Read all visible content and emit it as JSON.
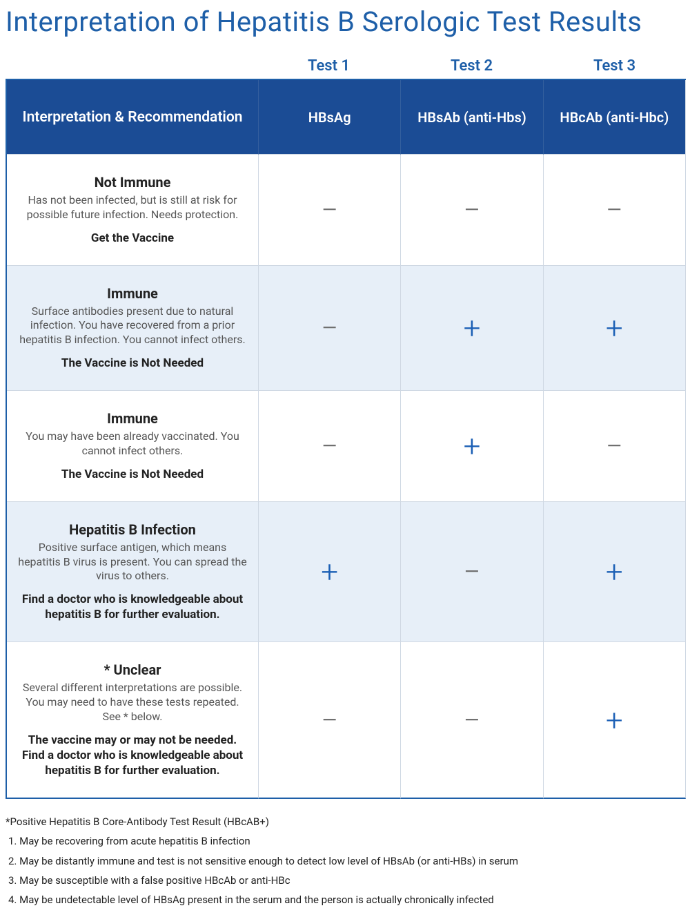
{
  "title": "Interpretation of Hepatitis B Serologic Test Results",
  "colors": {
    "primary": "#1e5fa8",
    "header_bg": "#1b4c95",
    "alt_row_bg": "#e7eff8",
    "plus": "#1b5fb5",
    "minus": "#707070",
    "text": "#222222",
    "subtext": "#555555",
    "border": "#cfd8e3"
  },
  "test_labels": [
    "Test 1",
    "Test 2",
    "Test 3"
  ],
  "columns": {
    "interp": "Interpretation & Recommendation",
    "t1": "HBsAg",
    "t2": "HBsAb (anti-Hbs)",
    "t3": "HBcAb (anti-Hbc)"
  },
  "symbols": {
    "plus": "+",
    "minus": "−"
  },
  "rows": [
    {
      "heading": "Not Immune",
      "desc": "Has not been infected, but is still at risk for possible future infection. Needs protection.",
      "rec": "Get the Vaccine",
      "t1": "minus",
      "t2": "minus",
      "t3": "minus",
      "alt": false
    },
    {
      "heading": "Immune",
      "desc": "Surface antibodies present due to natural infection. You have recovered from a prior hepatitis B infection. You cannot infect others.",
      "rec": "The Vaccine is Not Needed",
      "t1": "minus",
      "t2": "plus",
      "t3": "plus",
      "alt": true
    },
    {
      "heading": "Immune",
      "desc": "You may have been already vaccinated. You cannot infect others.",
      "rec": "The Vaccine is Not Needed",
      "t1": "minus",
      "t2": "plus",
      "t3": "minus",
      "alt": false
    },
    {
      "heading": "Hepatitis B Infection",
      "desc": "Positive surface antigen, which means hepatitis B virus is present. You can spread the virus to others.",
      "rec": "Find a doctor who is knowledgeable about hepatitis B for further evaluation.",
      "t1": "plus",
      "t2": "minus",
      "t3": "plus",
      "alt": true
    },
    {
      "heading": "* Unclear",
      "desc": "Several different interpretations are possible. You may need to have these tests repeated. See * below.",
      "rec": "The vaccine may or may not be needed. Find a doctor who is knowledgeable about hepatitis B for further evaluation.",
      "t1": "minus",
      "t2": "minus",
      "t3": "plus",
      "alt": false
    }
  ],
  "footnote_title": "*Positive Hepatitis B Core-Antibody Test Result (HBcAB+)",
  "footnotes": [
    "May be recovering from acute hepatitis B infection",
    "May be distantly immune and test is not sensitive enough to detect low level of HBsAb (or anti-HBs) in serum",
    "May be susceptible with a false positive HBcAb or anti-HBc",
    "May be undetectable level of HBsAg present in the serum and the person is actually chronically infected"
  ]
}
